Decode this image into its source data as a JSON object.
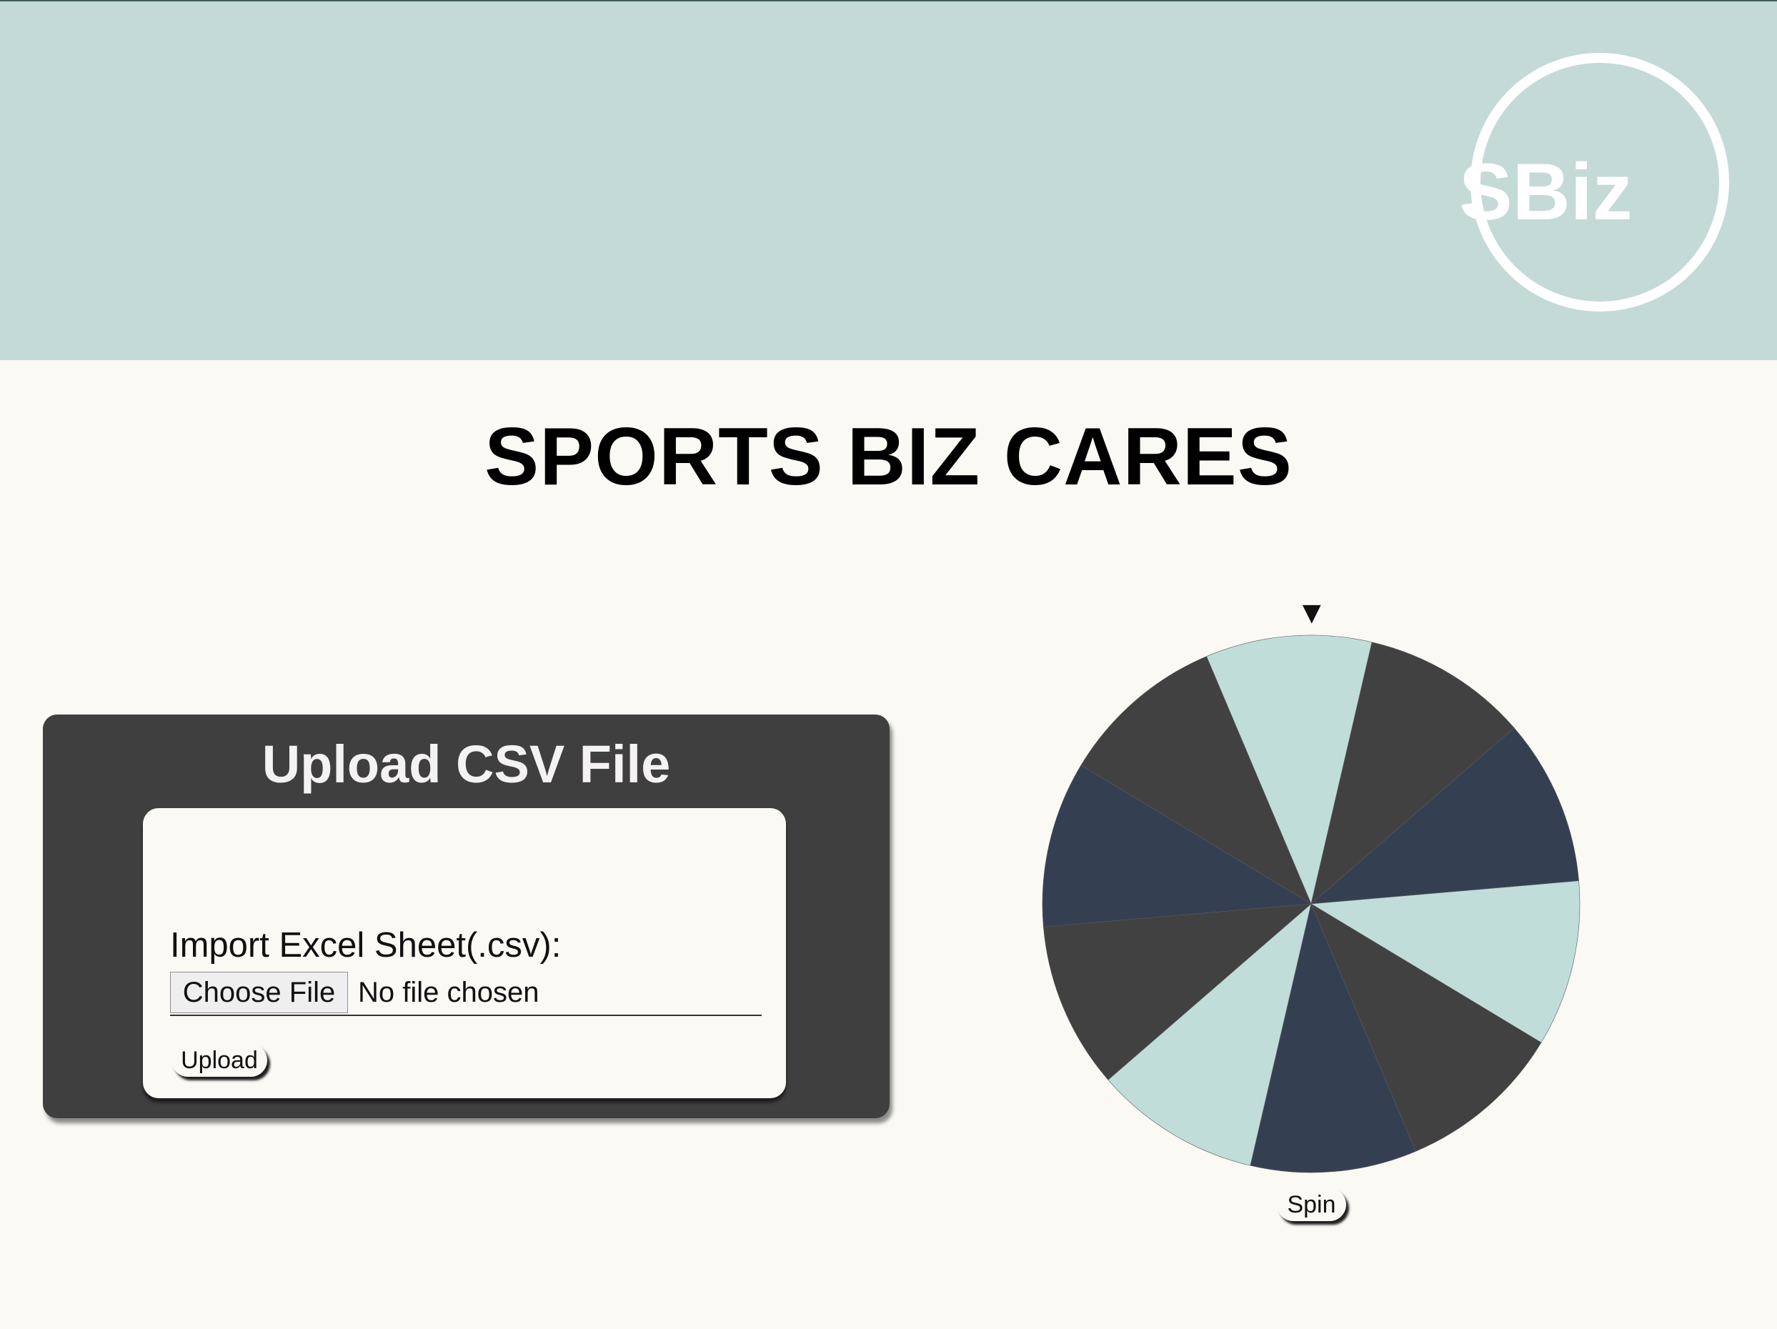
{
  "header": {
    "logo_text": "SBiz",
    "background_color": "#c4dad7"
  },
  "page": {
    "title": "SPORTS BIZ CARES",
    "background_color": "#faf9f4"
  },
  "upload_panel": {
    "title": "Upload CSV File",
    "import_label": "Import Excel Sheet(.csv):",
    "choose_file_label": "Choose File",
    "file_status": "No file chosen",
    "upload_label": "Upload"
  },
  "wheel": {
    "pointer_glyph": "▼",
    "spin_label": "Spin",
    "segment_count": 10,
    "segment_colors": [
      "#c0ddd9",
      "#414141",
      "#344052",
      "#c0ddd9",
      "#414141",
      "#344052",
      "#c0ddd9",
      "#414141",
      "#344052",
      "#414141"
    ]
  }
}
